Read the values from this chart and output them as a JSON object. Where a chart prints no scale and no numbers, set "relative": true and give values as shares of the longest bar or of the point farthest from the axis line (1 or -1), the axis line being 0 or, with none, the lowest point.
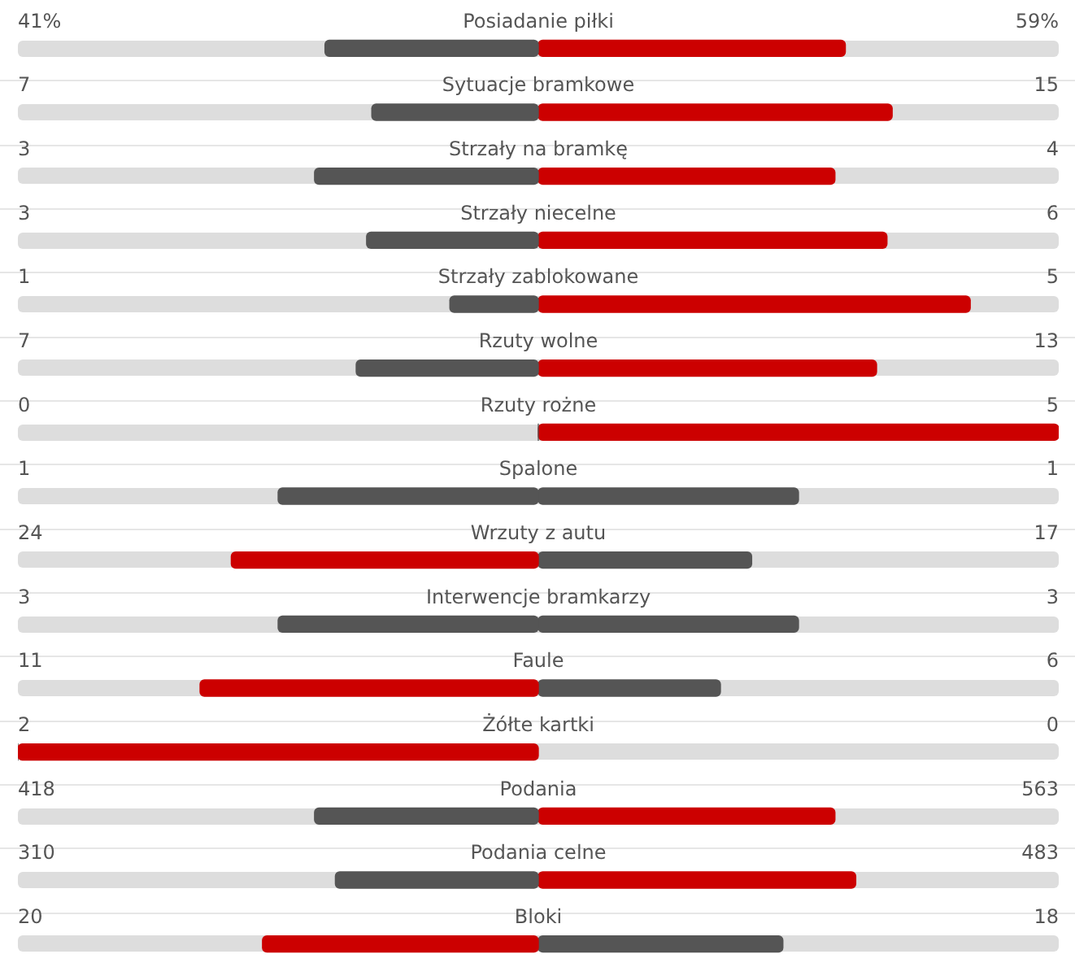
{
  "chart_data": {
    "type": "bar",
    "orientation": "horizontal",
    "relative": true,
    "stacked": true,
    "categories": [
      "Posiadanie piłki",
      "Sytuacje bramkowe",
      "Strzały na bramkę",
      "Strzały niecelne",
      "Strzały zablokowane",
      "Rzuty wolne",
      "Rzuty rożne",
      "Spalone",
      "Wrzuty z autu",
      "Interwencje bramkarzy",
      "Faule",
      "Żółte kartki",
      "Podania",
      "Podania celne",
      "Bloki"
    ],
    "series": [
      {
        "values": [
          -0.41,
          -0.32,
          -0.43,
          -0.33,
          -0.17,
          -0.35,
          0,
          -0.5,
          -0.59,
          -0.5,
          -0.65,
          -1,
          -0.43,
          -0.39,
          -0.53
        ],
        "colors": [
          "#555555",
          "#555555",
          "#555555",
          "#555555",
          "#555555",
          "#555555",
          "#555555",
          "#555555",
          "#cc0000",
          "#555555",
          "#cc0000",
          "#cc0000",
          "#555555",
          "#555555",
          "#cc0000"
        ]
      },
      {
        "values": [
          0.59,
          0.68,
          0.57,
          0.67,
          0.83,
          0.65,
          1,
          0.5,
          0.41,
          0.5,
          0.35,
          0,
          0.57,
          0.61,
          0.47
        ],
        "colors": [
          "#cc0000",
          "#cc0000",
          "#cc0000",
          "#cc0000",
          "#cc0000",
          "#cc0000",
          "#cc0000",
          "#555555",
          "#555555",
          "#555555",
          "#555555",
          "#555555",
          "#cc0000",
          "#cc0000",
          "#555555"
        ]
      }
    ],
    "annotations": [
      "41%",
      "59%",
      "7",
      "15",
      "3",
      "4",
      "3",
      "6",
      "1",
      "5",
      "7",
      "13",
      "0",
      "5",
      "1",
      "1",
      "24",
      "17",
      "3",
      "3",
      "11",
      "6",
      "2",
      "0",
      "418",
      "563",
      "310",
      "483",
      "20",
      "18"
    ]
  }
}
